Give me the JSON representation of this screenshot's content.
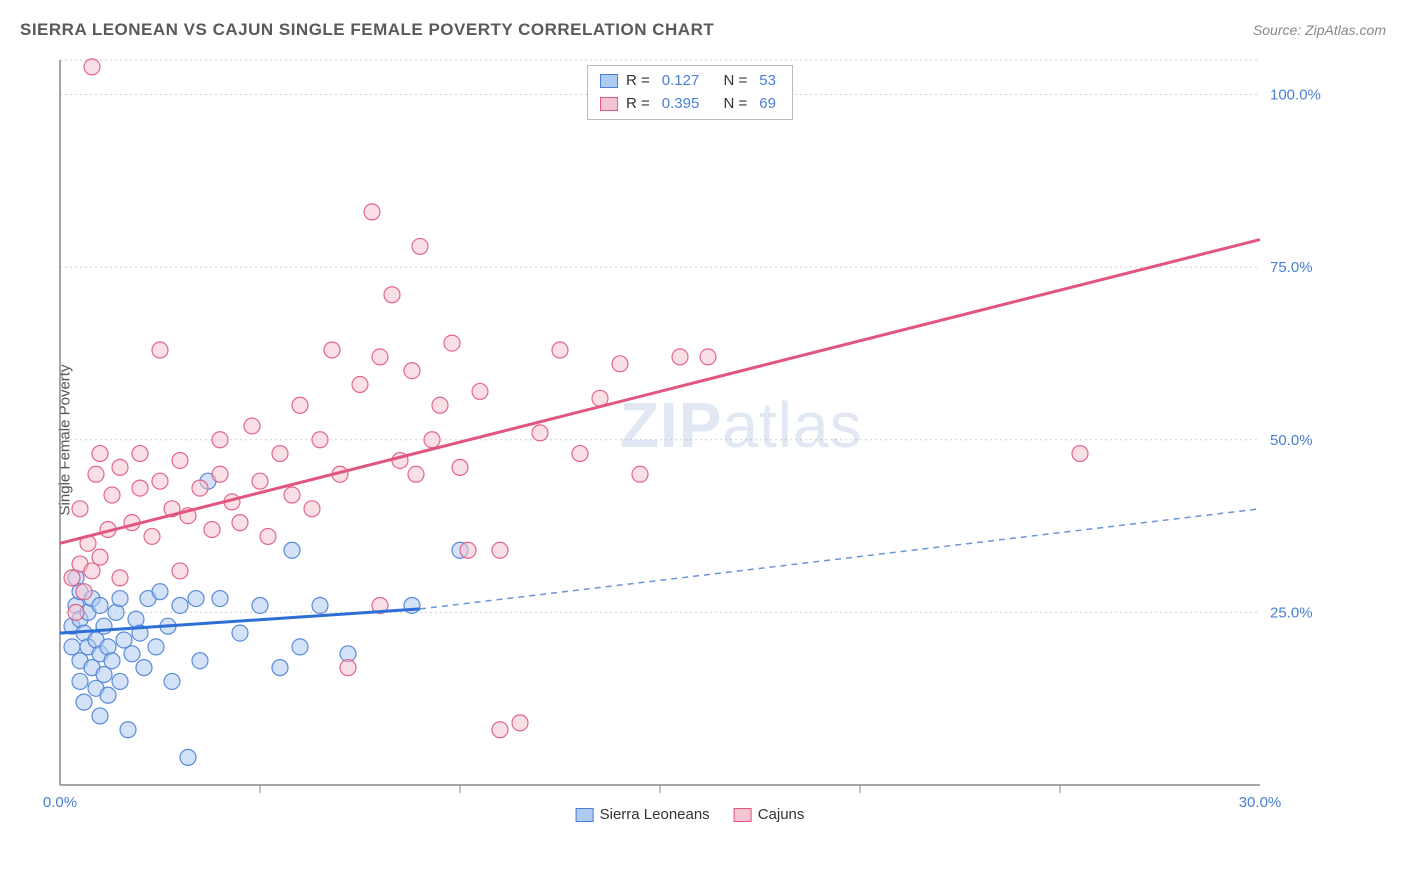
{
  "header": {
    "title": "SIERRA LEONEAN VS CAJUN SINGLE FEMALE POVERTY CORRELATION CHART",
    "source": "Source: ZipAtlas.com"
  },
  "watermark": {
    "part1": "ZIP",
    "part2": "atlas"
  },
  "y_axis_label": "Single Female Poverty",
  "stats": {
    "series1": {
      "r_label": "R =",
      "r_value": "0.127",
      "n_label": "N =",
      "n_value": "53"
    },
    "series2": {
      "r_label": "R =",
      "r_value": "0.395",
      "n_label": "N =",
      "n_value": "69"
    }
  },
  "legend": {
    "series1": "Sierra Leoneans",
    "series2": "Cajuns"
  },
  "chart": {
    "type": "scatter",
    "xlim": [
      0,
      30
    ],
    "ylim": [
      0,
      105
    ],
    "y_ticks": [
      25,
      50,
      75,
      100
    ],
    "y_tick_labels": [
      "25.0%",
      "50.0%",
      "75.0%",
      "100.0%"
    ],
    "x_ticks": [
      0,
      30
    ],
    "x_tick_labels": [
      "0.0%",
      "30.0%"
    ],
    "x_minor_ticks": [
      5,
      10,
      15,
      20,
      25
    ],
    "background_color": "#ffffff",
    "grid_color": "#d0d0d0",
    "axis_color": "#888888",
    "tick_label_color": "#4a7fd6",
    "marker_radius": 8,
    "marker_opacity": 0.55,
    "series": [
      {
        "name": "sierra_leoneans",
        "fill": "#aecbf0",
        "stroke": "#4a7fd6",
        "trend": {
          "color": "#2d6fd6",
          "width": 3,
          "dash_color": "#6a95d6",
          "x1": 0,
          "y1": 22,
          "x2_solid": 9,
          "y2_solid": 25.5,
          "x2": 30,
          "y2": 40
        },
        "points": [
          [
            0.3,
            20
          ],
          [
            0.3,
            23
          ],
          [
            0.4,
            26
          ],
          [
            0.4,
            30
          ],
          [
            0.5,
            15
          ],
          [
            0.5,
            18
          ],
          [
            0.5,
            24
          ],
          [
            0.5,
            28
          ],
          [
            0.6,
            12
          ],
          [
            0.6,
            22
          ],
          [
            0.7,
            20
          ],
          [
            0.7,
            25
          ],
          [
            0.8,
            17
          ],
          [
            0.8,
            27
          ],
          [
            0.9,
            14
          ],
          [
            0.9,
            21
          ],
          [
            1.0,
            10
          ],
          [
            1.0,
            19
          ],
          [
            1.0,
            26
          ],
          [
            1.1,
            16
          ],
          [
            1.1,
            23
          ],
          [
            1.2,
            13
          ],
          [
            1.2,
            20
          ],
          [
            1.3,
            18
          ],
          [
            1.4,
            25
          ],
          [
            1.5,
            15
          ],
          [
            1.5,
            27
          ],
          [
            1.6,
            21
          ],
          [
            1.7,
            8
          ],
          [
            1.8,
            19
          ],
          [
            1.9,
            24
          ],
          [
            2.0,
            22
          ],
          [
            2.1,
            17
          ],
          [
            2.2,
            27
          ],
          [
            2.4,
            20
          ],
          [
            2.5,
            28
          ],
          [
            2.7,
            23
          ],
          [
            2.8,
            15
          ],
          [
            3.0,
            26
          ],
          [
            3.2,
            4
          ],
          [
            3.4,
            27
          ],
          [
            3.5,
            18
          ],
          [
            3.7,
            44
          ],
          [
            4.0,
            27
          ],
          [
            4.5,
            22
          ],
          [
            5.0,
            26
          ],
          [
            5.5,
            17
          ],
          [
            5.8,
            34
          ],
          [
            6.0,
            20
          ],
          [
            6.5,
            26
          ],
          [
            7.2,
            19
          ],
          [
            8.8,
            26
          ],
          [
            10.0,
            34
          ]
        ]
      },
      {
        "name": "cajuns",
        "fill": "#f5c4d3",
        "stroke": "#e0567e",
        "trend": {
          "color": "#e0567e",
          "width": 3,
          "x1": 0,
          "y1": 35,
          "x2": 30,
          "y2": 79
        },
        "points": [
          [
            0.3,
            30
          ],
          [
            0.4,
            25
          ],
          [
            0.5,
            32
          ],
          [
            0.5,
            40
          ],
          [
            0.6,
            28
          ],
          [
            0.7,
            35
          ],
          [
            0.8,
            31
          ],
          [
            0.8,
            104
          ],
          [
            0.9,
            45
          ],
          [
            1.0,
            33
          ],
          [
            1.0,
            48
          ],
          [
            1.2,
            37
          ],
          [
            1.3,
            42
          ],
          [
            1.5,
            30
          ],
          [
            1.5,
            46
          ],
          [
            1.8,
            38
          ],
          [
            2.0,
            43
          ],
          [
            2.0,
            48
          ],
          [
            2.3,
            36
          ],
          [
            2.5,
            44
          ],
          [
            2.5,
            63
          ],
          [
            2.8,
            40
          ],
          [
            3.0,
            31
          ],
          [
            3.0,
            47
          ],
          [
            3.2,
            39
          ],
          [
            3.5,
            43
          ],
          [
            3.8,
            37
          ],
          [
            4.0,
            45
          ],
          [
            4.0,
            50
          ],
          [
            4.3,
            41
          ],
          [
            4.5,
            38
          ],
          [
            4.8,
            52
          ],
          [
            5.0,
            44
          ],
          [
            5.2,
            36
          ],
          [
            5.5,
            48
          ],
          [
            5.8,
            42
          ],
          [
            6.0,
            55
          ],
          [
            6.3,
            40
          ],
          [
            6.5,
            50
          ],
          [
            6.8,
            63
          ],
          [
            7.0,
            45
          ],
          [
            7.2,
            17
          ],
          [
            7.5,
            58
          ],
          [
            7.8,
            83
          ],
          [
            8.0,
            26
          ],
          [
            8.0,
            62
          ],
          [
            8.3,
            71
          ],
          [
            8.5,
            47
          ],
          [
            8.8,
            60
          ],
          [
            9.0,
            78
          ],
          [
            9.3,
            50
          ],
          [
            9.5,
            55
          ],
          [
            9.8,
            64
          ],
          [
            10.0,
            46
          ],
          [
            10.2,
            34
          ],
          [
            10.5,
            57
          ],
          [
            11.0,
            8
          ],
          [
            11.5,
            9
          ],
          [
            12.0,
            51
          ],
          [
            12.5,
            63
          ],
          [
            13.0,
            48
          ],
          [
            13.5,
            56
          ],
          [
            14.0,
            61
          ],
          [
            14.5,
            45
          ],
          [
            15.5,
            62
          ],
          [
            16.2,
            62
          ],
          [
            25.5,
            48
          ],
          [
            11.0,
            34
          ],
          [
            8.9,
            45
          ]
        ]
      }
    ]
  }
}
